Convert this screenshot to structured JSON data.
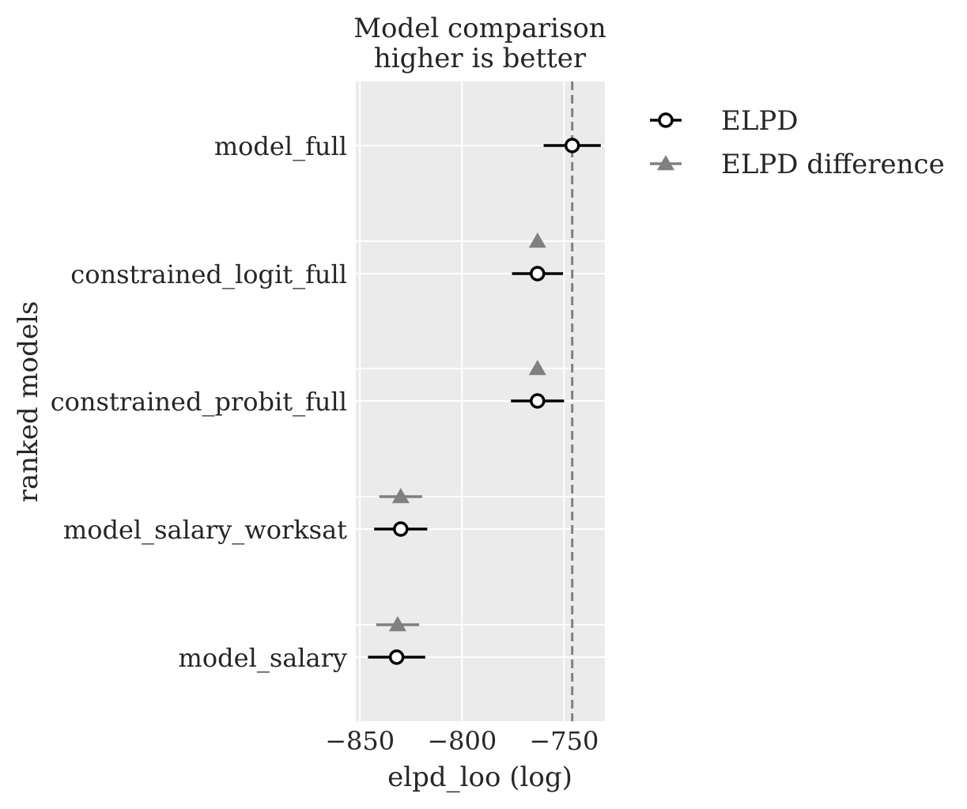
{
  "chart_data": {
    "type": "scatter",
    "title": "Model comparison\nhigher is better",
    "xlabel": "elpd_loo (log)",
    "ylabel": "ranked models",
    "xlim": [
      -852,
      -730
    ],
    "xticks": [
      -850,
      -800,
      -750
    ],
    "xtick_labels": [
      "−850",
      "−800",
      "−750"
    ],
    "grid": true,
    "legend_position": "outside-right",
    "models": [
      "model_full",
      "constrained_logit_full",
      "constrained_probit_full",
      "model_salary_worksat",
      "model_salary"
    ],
    "series": [
      {
        "name": "ELPD",
        "marker": "circle-open",
        "color": "#000000",
        "values": [
          -746,
          -763,
          -763,
          -830,
          -832
        ],
        "errors": [
          14,
          12.5,
          13,
          13,
          14
        ]
      },
      {
        "name": "ELPD difference",
        "marker": "triangle",
        "color": "#808080",
        "values": [
          null,
          -763,
          -763,
          -830,
          -831.5
        ],
        "errors": [
          null,
          0,
          0,
          10.5,
          10.5
        ]
      }
    ],
    "reference_line": {
      "x": -746,
      "style": "dashed",
      "color": "#808080"
    },
    "background_color": "#ebebeb",
    "grid_color": "#ffffff"
  }
}
